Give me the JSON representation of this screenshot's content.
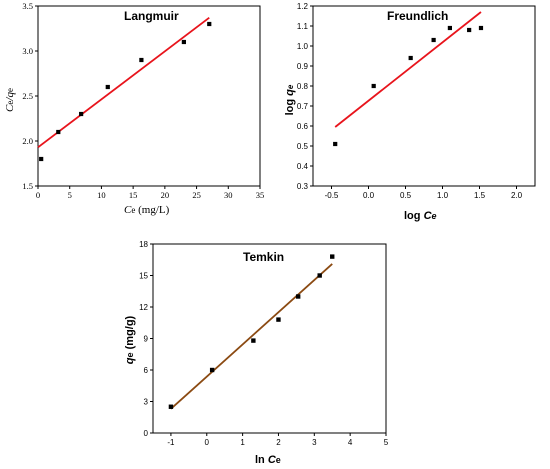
{
  "chart_data": [
    {
      "type": "scatter",
      "title": "Langmuir",
      "xlabel": "Ce (mg/L)",
      "ylabel": "Ce/qe",
      "xlim": [
        0,
        35
      ],
      "ylim": [
        1.5,
        3.5
      ],
      "xticks": [
        "0",
        "5",
        "10",
        "15",
        "20",
        "25",
        "30",
        "35"
      ],
      "yticks": [
        "1.5",
        "2.0",
        "2.5",
        "3.0",
        "3.5"
      ],
      "series": [
        {
          "x": [
            0.5,
            3.2,
            6.8,
            11.0,
            16.3,
            23.0,
            27.0
          ],
          "y": [
            1.8,
            2.1,
            2.3,
            2.6,
            2.9,
            3.1,
            3.3
          ]
        }
      ],
      "fit_line": {
        "x": [
          0,
          27
        ],
        "y": [
          1.93,
          3.37
        ],
        "color": "#e8141c"
      }
    },
    {
      "type": "scatter",
      "title": "Freundlich",
      "xlabel": "log Ce",
      "ylabel": "log qe",
      "xlim": [
        -0.75,
        2.25
      ],
      "ylim": [
        0.3,
        1.2
      ],
      "xticks": [
        "-0.5",
        "0.0",
        "0.5",
        "1.0",
        "1.5",
        "2.0"
      ],
      "yticks": [
        "0.3",
        "0.4",
        "0.5",
        "0.6",
        "0.7",
        "0.8",
        "0.9",
        "1.0",
        "1.1",
        "1.2"
      ],
      "series": [
        {
          "x": [
            -0.45,
            0.07,
            0.57,
            0.88,
            1.1,
            1.36,
            1.52
          ],
          "y": [
            0.51,
            0.8,
            0.94,
            1.03,
            1.09,
            1.08,
            1.09
          ]
        }
      ],
      "fit_line": {
        "x": [
          -0.45,
          1.52
        ],
        "y": [
          0.595,
          1.17
        ],
        "color": "#e8141c"
      }
    },
    {
      "type": "scatter",
      "title": "Temkin",
      "xlabel": "ln Ce",
      "ylabel": "qe (mg/g)",
      "xlim": [
        -1.5,
        5
      ],
      "ylim": [
        0,
        18
      ],
      "xticks": [
        "-1",
        "0",
        "1",
        "2",
        "3",
        "4",
        "5"
      ],
      "yticks": [
        "0",
        "3",
        "6",
        "9",
        "12",
        "15",
        "18"
      ],
      "series": [
        {
          "x": [
            -1.0,
            0.15,
            1.3,
            2.0,
            2.55,
            3.15,
            3.5
          ],
          "y": [
            2.5,
            6.0,
            8.8,
            10.8,
            13.0,
            15.0,
            16.8
          ]
        }
      ],
      "fit_line": {
        "x": [
          -1.0,
          3.5
        ],
        "y": [
          2.3,
          16.1
        ],
        "color": "#8b4a12"
      }
    }
  ]
}
